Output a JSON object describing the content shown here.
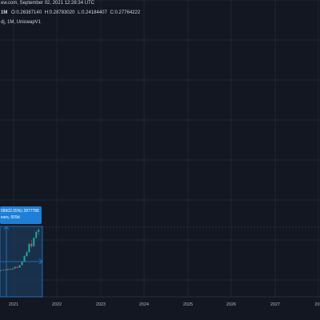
{
  "header": {
    "line1": "ew.com, September 02, 2021 12:28:34 UTC",
    "line2_interval": "1M",
    "ohlc": {
      "o": "O:0.26387140",
      "h": "H:0.28783020",
      "l": "L:0.24184407",
      "c": "C:0.27764222"
    },
    "line3": "dj, 1M, UniswapV1"
  },
  "measure_tooltip": {
    "line1": "08902.05%) 2877786",
    "line2": "ears, 609d"
  },
  "x_axis": {
    "labels": [
      "2021",
      "2022",
      "2023",
      "2024",
      "2025",
      "2026",
      "2027",
      "202"
    ]
  },
  "colors": {
    "background": "#131722",
    "grid": "#242a3a",
    "up": "#26a69a",
    "down": "#ef5350",
    "measure": "#1e7fd8",
    "measure_fill": "#1c3a5a"
  },
  "chart_data": {
    "type": "candlestick",
    "series": [
      {
        "values": [
          0.01,
          0.014,
          0.009,
          0.011
        ]
      },
      {
        "values": [
          0.011,
          0.016,
          0.01,
          0.015
        ]
      },
      {
        "values": [
          0.015,
          0.017,
          0.012,
          0.013
        ]
      },
      {
        "values": [
          0.013,
          0.021,
          0.012,
          0.02
        ]
      },
      {
        "values": [
          0.02,
          0.022,
          0.015,
          0.016
        ]
      },
      {
        "values": [
          0.016,
          0.024,
          0.015,
          0.023
        ]
      },
      {
        "values": [
          0.023,
          0.035,
          0.022,
          0.034
        ]
      },
      {
        "values": [
          0.034,
          0.036,
          0.026,
          0.028
        ]
      },
      {
        "values": [
          0.028,
          0.046,
          0.027,
          0.045
        ]
      },
      {
        "values": [
          0.045,
          0.07,
          0.044,
          0.069
        ]
      },
      {
        "values": [
          0.069,
          0.11,
          0.068,
          0.105
        ]
      },
      {
        "values": [
          0.105,
          0.14,
          0.1,
          0.13
        ]
      },
      {
        "values": [
          0.13,
          0.19,
          0.125,
          0.185
        ]
      },
      {
        "values": [
          0.185,
          0.21,
          0.16,
          0.17
        ]
      },
      {
        "values": [
          0.17,
          0.23,
          0.165,
          0.225
        ]
      },
      {
        "values": [
          0.225,
          0.27,
          0.22,
          0.2639
        ]
      },
      {
        "values": [
          0.2638714,
          0.2878302,
          0.24184407,
          0.27764222
        ]
      }
    ]
  }
}
